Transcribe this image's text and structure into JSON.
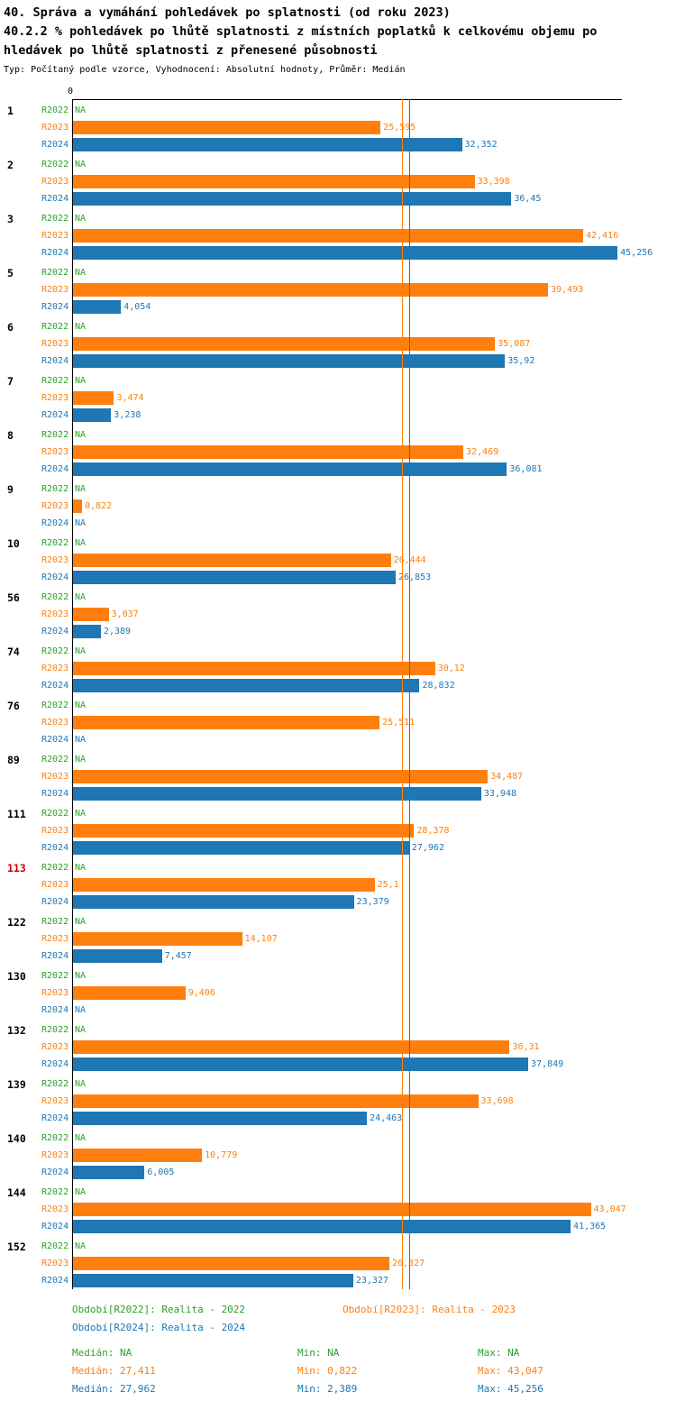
{
  "header": {
    "title_line1": "40. Správa a vymáhání pohledávek po splatnosti (od roku 2023)",
    "title_line2": "40.2.2 % pohledávek po lhůtě splatnosti z místních poplatků k celkovému objemu po",
    "title_line3": "hledávek po lhůtě splatnosti z přenesené působnosti",
    "subtitle": "Typ: Počítaný podle vzorce, Vyhodnocení: Absolutní hodnoty, Průměr: Medián"
  },
  "chart_data": {
    "type": "bar",
    "orientation": "horizontal",
    "x_origin_label": "0",
    "xlim": [
      0,
      45.62
    ],
    "grid": false,
    "series": [
      "R2022",
      "R2023",
      "R2024"
    ],
    "series_colors": {
      "R2022": "#2ca02c",
      "R2023": "#ff7f0e",
      "R2024": "#1f77b4"
    },
    "highlight_color": "#cc0000",
    "groups": [
      {
        "id": "1",
        "highlight": false,
        "bars": [
          {
            "series": "R2022",
            "display": "NA",
            "value": null
          },
          {
            "series": "R2023",
            "display": "25,595",
            "value": 25.595
          },
          {
            "series": "R2024",
            "display": "32,352",
            "value": 32.352
          }
        ]
      },
      {
        "id": "2",
        "highlight": false,
        "bars": [
          {
            "series": "R2022",
            "display": "NA",
            "value": null
          },
          {
            "series": "R2023",
            "display": "33,398",
            "value": 33.398
          },
          {
            "series": "R2024",
            "display": "36,45",
            "value": 36.45
          }
        ]
      },
      {
        "id": "3",
        "highlight": false,
        "bars": [
          {
            "series": "R2022",
            "display": "NA",
            "value": null
          },
          {
            "series": "R2023",
            "display": "42,416",
            "value": 42.416
          },
          {
            "series": "R2024",
            "display": "45,256",
            "value": 45.256
          }
        ]
      },
      {
        "id": "5",
        "highlight": false,
        "bars": [
          {
            "series": "R2022",
            "display": "NA",
            "value": null
          },
          {
            "series": "R2023",
            "display": "39,493",
            "value": 39.493
          },
          {
            "series": "R2024",
            "display": "4,054",
            "value": 4.054
          }
        ]
      },
      {
        "id": "6",
        "highlight": false,
        "bars": [
          {
            "series": "R2022",
            "display": "NA",
            "value": null
          },
          {
            "series": "R2023",
            "display": "35,087",
            "value": 35.087
          },
          {
            "series": "R2024",
            "display": "35,92",
            "value": 35.92
          }
        ]
      },
      {
        "id": "7",
        "highlight": false,
        "bars": [
          {
            "series": "R2022",
            "display": "NA",
            "value": null
          },
          {
            "series": "R2023",
            "display": "3,474",
            "value": 3.474
          },
          {
            "series": "R2024",
            "display": "3,238",
            "value": 3.238
          }
        ]
      },
      {
        "id": "8",
        "highlight": false,
        "bars": [
          {
            "series": "R2022",
            "display": "NA",
            "value": null
          },
          {
            "series": "R2023",
            "display": "32,469",
            "value": 32.469
          },
          {
            "series": "R2024",
            "display": "36,081",
            "value": 36.081
          }
        ]
      },
      {
        "id": "9",
        "highlight": false,
        "bars": [
          {
            "series": "R2022",
            "display": "NA",
            "value": null
          },
          {
            "series": "R2023",
            "display": "0,822",
            "value": 0.822
          },
          {
            "series": "R2024",
            "display": "NA",
            "value": null
          }
        ]
      },
      {
        "id": "10",
        "highlight": false,
        "bars": [
          {
            "series": "R2022",
            "display": "NA",
            "value": null
          },
          {
            "series": "R2023",
            "display": "26,444",
            "value": 26.444
          },
          {
            "series": "R2024",
            "display": "26,853",
            "value": 26.853
          }
        ]
      },
      {
        "id": "56",
        "highlight": false,
        "bars": [
          {
            "series": "R2022",
            "display": "NA",
            "value": null
          },
          {
            "series": "R2023",
            "display": "3,037",
            "value": 3.037
          },
          {
            "series": "R2024",
            "display": "2,389",
            "value": 2.389
          }
        ]
      },
      {
        "id": "74",
        "highlight": false,
        "bars": [
          {
            "series": "R2022",
            "display": "NA",
            "value": null
          },
          {
            "series": "R2023",
            "display": "30,12",
            "value": 30.12
          },
          {
            "series": "R2024",
            "display": "28,832",
            "value": 28.832
          }
        ]
      },
      {
        "id": "76",
        "highlight": false,
        "bars": [
          {
            "series": "R2022",
            "display": "NA",
            "value": null
          },
          {
            "series": "R2023",
            "display": "25,511",
            "value": 25.511
          },
          {
            "series": "R2024",
            "display": "NA",
            "value": null
          }
        ]
      },
      {
        "id": "89",
        "highlight": false,
        "bars": [
          {
            "series": "R2022",
            "display": "NA",
            "value": null
          },
          {
            "series": "R2023",
            "display": "34,487",
            "value": 34.487
          },
          {
            "series": "R2024",
            "display": "33,948",
            "value": 33.948
          }
        ]
      },
      {
        "id": "111",
        "highlight": false,
        "bars": [
          {
            "series": "R2022",
            "display": "NA",
            "value": null
          },
          {
            "series": "R2023",
            "display": "28,378",
            "value": 28.378
          },
          {
            "series": "R2024",
            "display": "27,962",
            "value": 27.962
          }
        ]
      },
      {
        "id": "113",
        "highlight": true,
        "bars": [
          {
            "series": "R2022",
            "display": "NA",
            "value": null
          },
          {
            "series": "R2023",
            "display": "25,1",
            "value": 25.1
          },
          {
            "series": "R2024",
            "display": "23,379",
            "value": 23.379
          }
        ]
      },
      {
        "id": "122",
        "highlight": false,
        "bars": [
          {
            "series": "R2022",
            "display": "NA",
            "value": null
          },
          {
            "series": "R2023",
            "display": "14,107",
            "value": 14.107
          },
          {
            "series": "R2024",
            "display": "7,457",
            "value": 7.457
          }
        ]
      },
      {
        "id": "130",
        "highlight": false,
        "bars": [
          {
            "series": "R2022",
            "display": "NA",
            "value": null
          },
          {
            "series": "R2023",
            "display": "9,406",
            "value": 9.406
          },
          {
            "series": "R2024",
            "display": "NA",
            "value": null
          }
        ]
      },
      {
        "id": "132",
        "highlight": false,
        "bars": [
          {
            "series": "R2022",
            "display": "NA",
            "value": null
          },
          {
            "series": "R2023",
            "display": "36,31",
            "value": 36.31
          },
          {
            "series": "R2024",
            "display": "37,849",
            "value": 37.849
          }
        ]
      },
      {
        "id": "139",
        "highlight": false,
        "bars": [
          {
            "series": "R2022",
            "display": "NA",
            "value": null
          },
          {
            "series": "R2023",
            "display": "33,698",
            "value": 33.698
          },
          {
            "series": "R2024",
            "display": "24,463",
            "value": 24.463
          }
        ]
      },
      {
        "id": "140",
        "highlight": false,
        "bars": [
          {
            "series": "R2022",
            "display": "NA",
            "value": null
          },
          {
            "series": "R2023",
            "display": "10,779",
            "value": 10.779
          },
          {
            "series": "R2024",
            "display": "6,005",
            "value": 6.005
          }
        ]
      },
      {
        "id": "144",
        "highlight": false,
        "bars": [
          {
            "series": "R2022",
            "display": "NA",
            "value": null
          },
          {
            "series": "R2023",
            "display": "43,047",
            "value": 43.047
          },
          {
            "series": "R2024",
            "display": "41,365",
            "value": 41.365
          }
        ]
      },
      {
        "id": "152",
        "highlight": false,
        "bars": [
          {
            "series": "R2022",
            "display": "NA",
            "value": null
          },
          {
            "series": "R2023",
            "display": "26,327",
            "value": 26.327
          },
          {
            "series": "R2024",
            "display": "23,327",
            "value": 23.327
          }
        ]
      }
    ],
    "median_lines": [
      {
        "series": "R2023",
        "value": 27.411
      },
      {
        "series": "R2024",
        "value": 27.962
      }
    ]
  },
  "legend": {
    "items": [
      {
        "series": "R2022",
        "label": "Období[R2022]: Realita - 2022"
      },
      {
        "series": "R2023",
        "label": "Období[R2023]: Realita - 2023"
      },
      {
        "series": "R2024",
        "label": "Období[R2024]: Realita - 2024"
      }
    ]
  },
  "stats": {
    "rows": [
      {
        "series": "R2022",
        "median": "Medián: NA",
        "min": "Min: NA",
        "max": "Max: NA"
      },
      {
        "series": "R2023",
        "median": "Medián: 27,411",
        "min": "Min: 0,822",
        "max": "Max: 43,047"
      },
      {
        "series": "R2024",
        "median": "Medián: 27,962",
        "min": "Min: 2,389",
        "max": "Max: 45,256"
      }
    ]
  }
}
